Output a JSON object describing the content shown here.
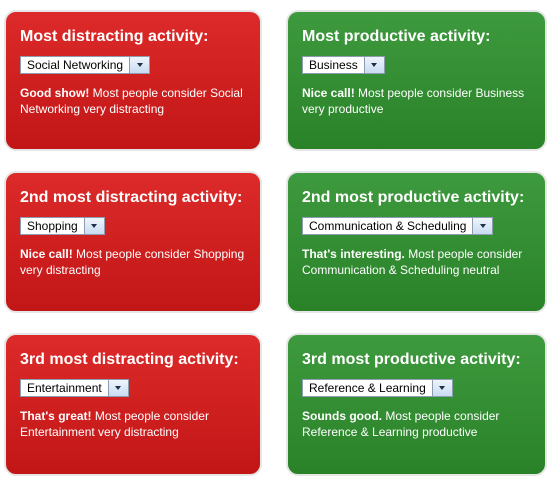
{
  "cards": [
    {
      "title": "Most distracting activity:",
      "selected": "Social Networking",
      "bold": "Good show!",
      "text": "Most people consider Social Networking very distracting"
    },
    {
      "title": "Most productive activity:",
      "selected": "Business",
      "bold": "Nice call!",
      "text": "Most people consider Business very productive"
    },
    {
      "title": "2nd most distracting activity:",
      "selected": "Shopping",
      "bold": "Nice call!",
      "text": "Most people consider Shopping very distracting"
    },
    {
      "title": "2nd most productive activity:",
      "selected": "Communication & Scheduling",
      "bold": "That's interesting.",
      "text": "Most people consider Communication & Scheduling neutral"
    },
    {
      "title": "3rd most distracting activity:",
      "selected": "Entertainment",
      "bold": "That's great!",
      "text": "Most people consider Entertainment very distracting"
    },
    {
      "title": "3rd most productive activity:",
      "selected": "Reference & Learning",
      "bold": "Sounds good.",
      "text": "Most people consider Reference & Learning productive"
    }
  ],
  "colors": {
    "distracting": "#c91b1b",
    "productive": "#348e33"
  }
}
